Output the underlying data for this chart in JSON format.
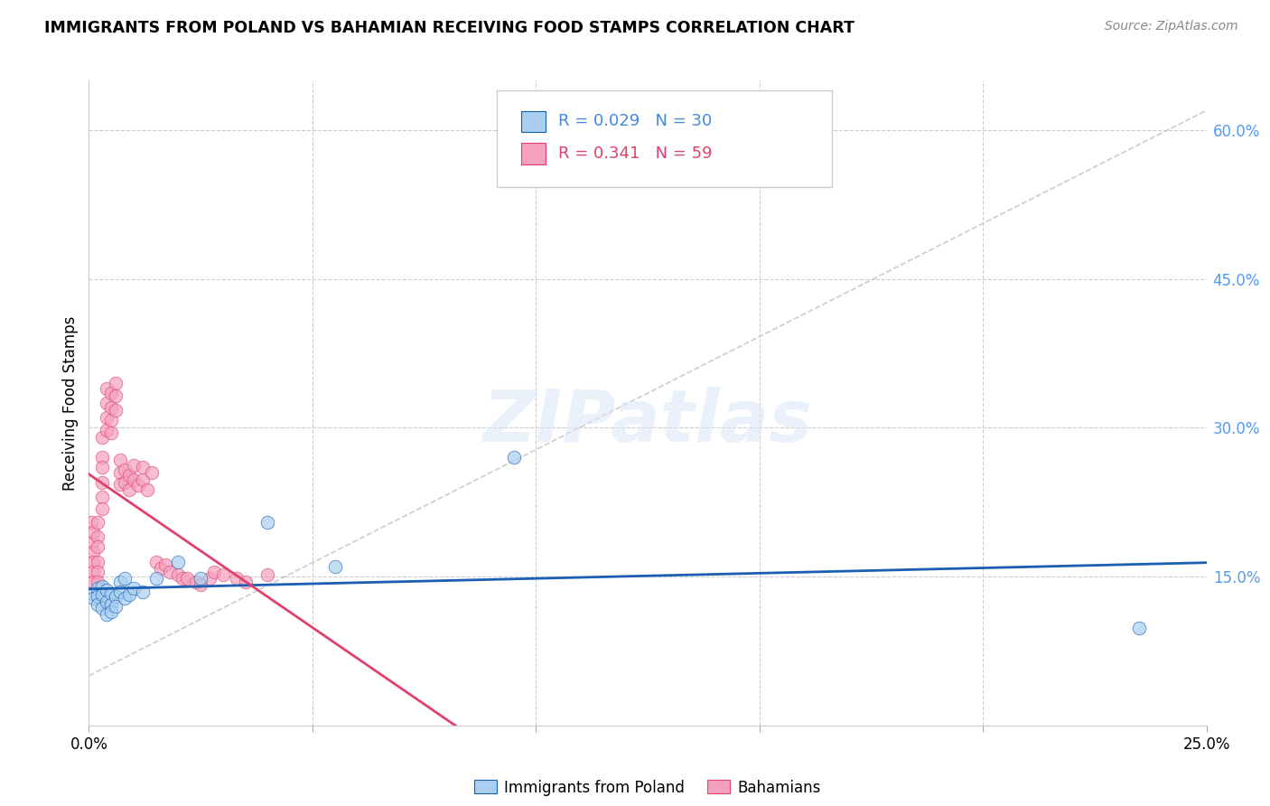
{
  "title": "IMMIGRANTS FROM POLAND VS BAHAMIAN RECEIVING FOOD STAMPS CORRELATION CHART",
  "source": "Source: ZipAtlas.com",
  "ylabel": "Receiving Food Stamps",
  "yticks": [
    0.0,
    0.15,
    0.3,
    0.45,
    0.6
  ],
  "ytick_labels": [
    "",
    "15.0%",
    "30.0%",
    "45.0%",
    "60.0%"
  ],
  "xlim": [
    0.0,
    0.25
  ],
  "ylim": [
    0.0,
    0.65
  ],
  "color_blue": "#a8cef0",
  "color_pink": "#f5a0be",
  "color_blue_line": "#1a5fb4",
  "color_pink_line": "#e0406a",
  "color_blue_text": "#4488dd",
  "color_pink_text": "#e0406a",
  "color_ytick": "#5599ee",
  "watermark": "ZIPatlas",
  "poland_x": [
    0.001,
    0.001,
    0.002,
    0.002,
    0.002,
    0.003,
    0.003,
    0.003,
    0.004,
    0.004,
    0.004,
    0.005,
    0.005,
    0.005,
    0.006,
    0.006,
    0.007,
    0.007,
    0.008,
    0.008,
    0.009,
    0.01,
    0.012,
    0.015,
    0.02,
    0.025,
    0.04,
    0.055,
    0.095,
    0.235
  ],
  "poland_y": [
    0.133,
    0.128,
    0.138,
    0.13,
    0.122,
    0.14,
    0.132,
    0.118,
    0.136,
    0.125,
    0.112,
    0.133,
    0.122,
    0.115,
    0.13,
    0.12,
    0.145,
    0.135,
    0.148,
    0.128,
    0.132,
    0.138,
    0.135,
    0.148,
    0.165,
    0.148,
    0.205,
    0.16,
    0.27,
    0.098
  ],
  "bahamas_x": [
    0.0005,
    0.0007,
    0.001,
    0.001,
    0.001,
    0.001,
    0.001,
    0.002,
    0.002,
    0.002,
    0.002,
    0.002,
    0.002,
    0.003,
    0.003,
    0.003,
    0.003,
    0.003,
    0.003,
    0.004,
    0.004,
    0.004,
    0.004,
    0.005,
    0.005,
    0.005,
    0.005,
    0.006,
    0.006,
    0.006,
    0.007,
    0.007,
    0.007,
    0.008,
    0.008,
    0.009,
    0.009,
    0.01,
    0.01,
    0.011,
    0.012,
    0.012,
    0.013,
    0.014,
    0.015,
    0.016,
    0.017,
    0.018,
    0.02,
    0.021,
    0.022,
    0.024,
    0.025,
    0.027,
    0.028,
    0.03,
    0.033,
    0.035,
    0.04
  ],
  "bahamas_y": [
    0.205,
    0.185,
    0.175,
    0.195,
    0.165,
    0.155,
    0.145,
    0.205,
    0.19,
    0.18,
    0.165,
    0.155,
    0.145,
    0.29,
    0.27,
    0.26,
    0.245,
    0.23,
    0.218,
    0.34,
    0.325,
    0.31,
    0.298,
    0.335,
    0.32,
    0.308,
    0.295,
    0.345,
    0.332,
    0.318,
    0.268,
    0.255,
    0.243,
    0.258,
    0.245,
    0.252,
    0.238,
    0.262,
    0.248,
    0.242,
    0.26,
    0.248,
    0.238,
    0.255,
    0.165,
    0.158,
    0.162,
    0.155,
    0.152,
    0.148,
    0.148,
    0.145,
    0.142,
    0.148,
    0.155,
    0.152,
    0.148,
    0.145,
    0.152
  ]
}
